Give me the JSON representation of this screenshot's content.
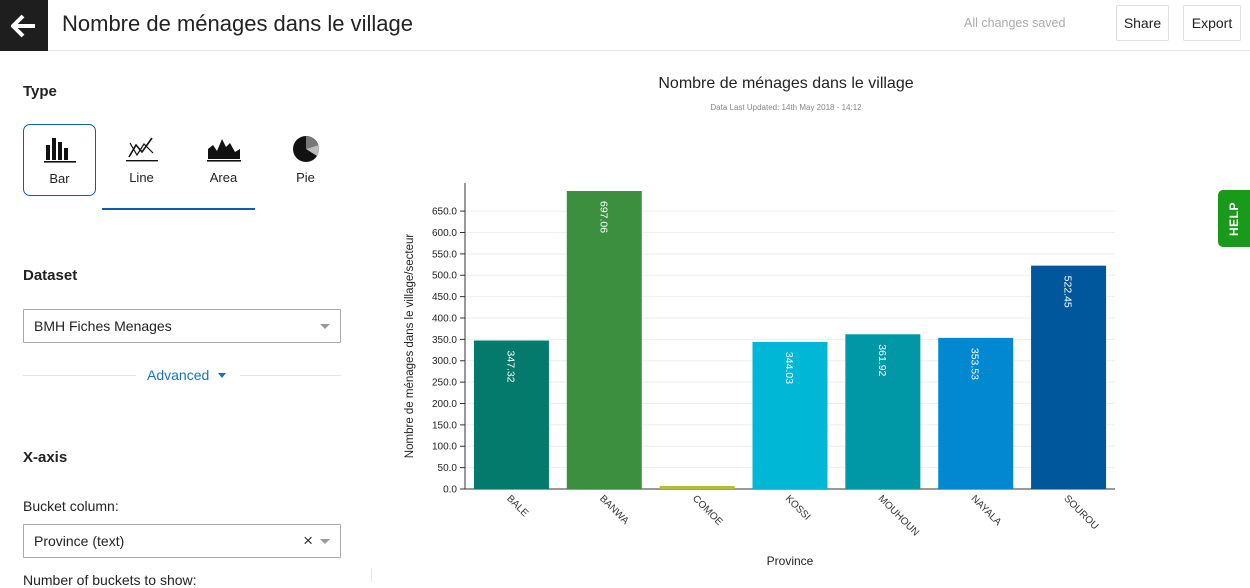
{
  "header": {
    "title": "Nombre de ménages dans le village",
    "save_status": "All changes saved",
    "share_label": "Share",
    "export_label": "Export"
  },
  "sidebar": {
    "type_heading": "Type",
    "types": [
      {
        "label": "Bar",
        "icon": "bar-chart-icon",
        "selected": true
      },
      {
        "label": "Line",
        "icon": "line-chart-icon",
        "selected": false
      },
      {
        "label": "Area",
        "icon": "area-chart-icon",
        "selected": false
      },
      {
        "label": "Pie",
        "icon": "pie-chart-icon",
        "selected": false
      }
    ],
    "dataset_heading": "Dataset",
    "dataset_value": "BMH Fiches Menages",
    "advanced_label": "Advanced",
    "xaxis_heading": "X-axis",
    "bucket_column_label": "Bucket column:",
    "bucket_column_value": "Province (text)",
    "num_buckets_label": "Number of buckets to show:"
  },
  "help_label": "HELP",
  "colors": {
    "accent": "#0a5fb4",
    "help_green": "#1a9a1a"
  },
  "chart_data": {
    "type": "bar",
    "title": "Nombre de ménages dans le village",
    "subtitle": "Data Last Updated: 14th May 2018 - 14:12",
    "xlabel": "Province",
    "ylabel": "Nombre de ménages dans le village/secteur",
    "ylim": [
      0,
      697.06
    ],
    "yticks": [
      "0.0",
      "50.0",
      "100.0",
      "150.0",
      "200.0",
      "250.0",
      "300.0",
      "350.0",
      "400.0",
      "450.0",
      "500.0",
      "550.0",
      "600.0",
      "650.0"
    ],
    "categories": [
      "BALE",
      "BANWA",
      "COMOE",
      "KOSSI",
      "MOUHOUN",
      "NAYALA",
      "SOUROU"
    ],
    "values": [
      347.32,
      697.06,
      7,
      344.03,
      361.92,
      353.53,
      522.45
    ],
    "data_labels": [
      "347.32",
      "697.06",
      "",
      "344.03",
      "361.92",
      "353.53",
      "522.45"
    ],
    "colors": [
      "#037a6c",
      "#3b8f3e",
      "#b3bd35",
      "#00b8d6",
      "#0097a7",
      "#0288d1",
      "#01579b"
    ],
    "grid": true
  }
}
